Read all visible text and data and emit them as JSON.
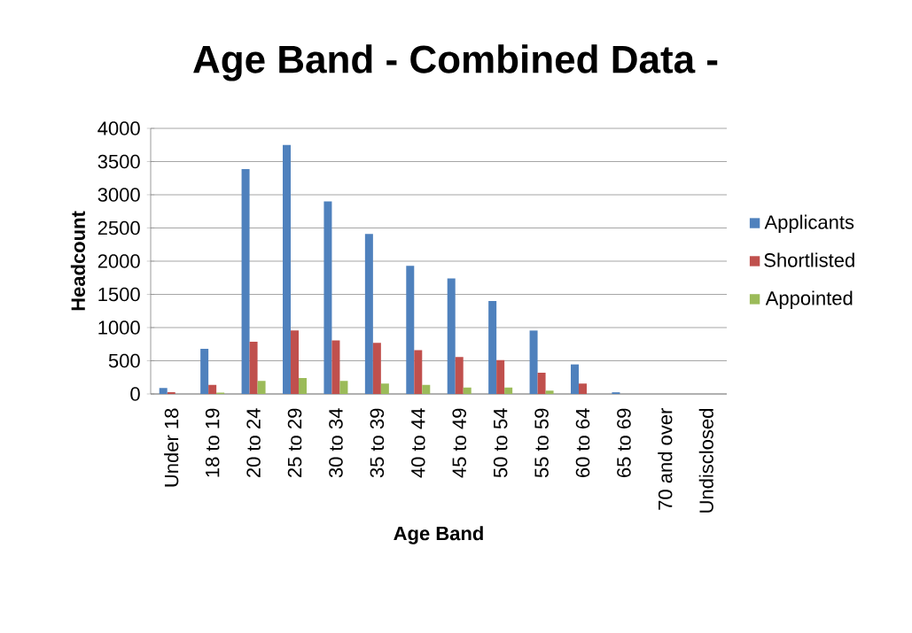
{
  "chart_data": {
    "type": "bar",
    "title": "Age Band - Combined Data -",
    "xlabel": "Age Band",
    "ylabel": "Headcount",
    "categories": [
      "Under 18",
      "18 to 19",
      "20 to 24",
      "25 to 29",
      "30 to 34",
      "35 to 39",
      "40 to 44",
      "45 to 49",
      "50 to 54",
      "55 to 59",
      "60 to 64",
      "65 to 69",
      "70 and over",
      "Undisclosed"
    ],
    "series": [
      {
        "name": "Applicants",
        "color": "#4f81bd",
        "values": [
          90,
          680,
          3385,
          3750,
          2900,
          2410,
          1930,
          1740,
          1400,
          955,
          445,
          25,
          0,
          0
        ]
      },
      {
        "name": "Shortlisted",
        "color": "#c0504d",
        "values": [
          25,
          135,
          785,
          955,
          805,
          770,
          660,
          555,
          510,
          320,
          155,
          0,
          0,
          0
        ]
      },
      {
        "name": "Appointed",
        "color": "#9bbb59",
        "values": [
          0,
          20,
          195,
          240,
          195,
          155,
          135,
          95,
          95,
          50,
          0,
          0,
          0,
          0
        ]
      }
    ],
    "ylim": [
      0,
      4000
    ],
    "yticks": [
      0,
      500,
      1000,
      1500,
      2000,
      2500,
      3000,
      3500,
      4000
    ],
    "grid": "y",
    "legend": "right"
  }
}
